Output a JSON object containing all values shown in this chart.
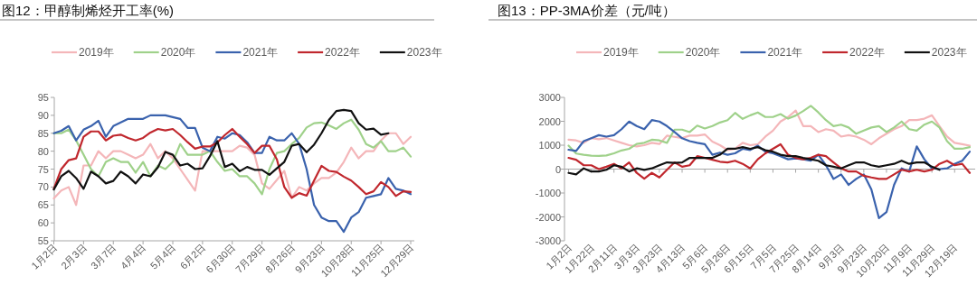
{
  "chart_data": [
    {
      "type": "line",
      "title": "图12：甲醇制烯烃开工率(%)",
      "legend": "top",
      "categories": [
        "1月2日",
        null,
        null,
        null,
        "2月3日",
        null,
        null,
        null,
        "3月7日",
        null,
        null,
        null,
        "4月4日",
        null,
        null,
        null,
        "5月4日",
        null,
        null,
        null,
        "6月2日",
        null,
        null,
        null,
        "6月30日",
        null,
        null,
        null,
        "7月29日",
        null,
        null,
        null,
        "8月26日",
        null,
        null,
        null,
        "9月23日",
        null,
        null,
        null,
        "10月28日",
        null,
        null,
        null,
        "11月25日",
        null,
        null,
        null,
        "12月29日"
      ],
      "ylim": [
        55,
        95
      ],
      "yticks": [
        55,
        60,
        65,
        70,
        75,
        80,
        85,
        90,
        95
      ],
      "series": [
        {
          "name": "2019年",
          "color": "#f4b6b9",
          "values": [
            66.8,
            69,
            70,
            65,
            76,
            76,
            80,
            78,
            80,
            80,
            79,
            78,
            79,
            82,
            78,
            80,
            78,
            75,
            72,
            69,
            80,
            80,
            80,
            80,
            80,
            81.5,
            81,
            79,
            71,
            69.5,
            72,
            74.5,
            67,
            70,
            69,
            71,
            72.5,
            72.5,
            74,
            77,
            81,
            78,
            80,
            80,
            83,
            85,
            85,
            82,
            84
          ]
        },
        {
          "name": "2020年",
          "color": "#9fd18a",
          "values": [
            85,
            85,
            86,
            83,
            79,
            75,
            73,
            77,
            78,
            77,
            77,
            74,
            77,
            73,
            76,
            75,
            77,
            82,
            79,
            79,
            79,
            80,
            77,
            74.5,
            75,
            73,
            73,
            71,
            68,
            75,
            79.5,
            80,
            82,
            83.7,
            86.6,
            87.8,
            88,
            87.2,
            86.2,
            87.8,
            88.8,
            86,
            82,
            81,
            82.8,
            80,
            80,
            81,
            78.5
          ]
        },
        {
          "name": "2021年",
          "color": "#3a62ad",
          "values": [
            85,
            85.7,
            87,
            83,
            86,
            87,
            88.5,
            84,
            87,
            88,
            89,
            89,
            89,
            90,
            90,
            90,
            89.5,
            89,
            86.5,
            86.5,
            81,
            80,
            84,
            83.5,
            85,
            84.5,
            82.5,
            79.5,
            79.5,
            84,
            83,
            83,
            85,
            82,
            75,
            65,
            61.5,
            60.5,
            60.5,
            57.5,
            61.5,
            63,
            67,
            67.5,
            68,
            72.5,
            69.5,
            69,
            68
          ]
        },
        {
          "name": "2022年",
          "color": "#c0272d",
          "values": [
            69.5,
            75,
            77.5,
            78,
            84,
            85.5,
            85.5,
            83,
            84.3,
            84.6,
            83.7,
            83,
            83.7,
            85.2,
            86.2,
            85.8,
            86.2,
            84.5,
            82.5,
            80.7,
            81.3,
            81.3,
            82.4,
            84.5,
            86.2,
            84,
            82,
            79.5,
            81.5,
            81.5,
            77.7,
            70,
            67,
            68.3,
            67.6,
            71.8,
            75.9,
            74.5,
            74.2,
            72.9,
            71.8,
            70,
            68,
            68.8,
            71.4,
            70,
            67.5,
            68.8,
            68.6
          ]
        },
        {
          "name": "2023年",
          "color": "#111111",
          "values": [
            69.3,
            73,
            74.5,
            72.5,
            69.5,
            74.3,
            73,
            71,
            71.7,
            74.3,
            73,
            71,
            73.5,
            73,
            75.5,
            79.8,
            79,
            76,
            76.5,
            75,
            75.2,
            78.6,
            82.8,
            75.6,
            76.5,
            74.4,
            75.6,
            74.8,
            74.8,
            73.4,
            75.2,
            77,
            81.5,
            82,
            79.7,
            81.8,
            85,
            88.7,
            91.2,
            91.5,
            91.2,
            87.8,
            86,
            86.3,
            84.6,
            85,
            null,
            null,
            null
          ]
        }
      ]
    },
    {
      "type": "line",
      "title": "图13：PP-3MA价差（元/吨）",
      "legend": "top",
      "categories": [
        "1月2日",
        null,
        null,
        "1月22日",
        null,
        null,
        "2月11日",
        null,
        null,
        "3月3日",
        null,
        null,
        "3月23日",
        null,
        null,
        "4月13日",
        null,
        null,
        "5月6日",
        null,
        null,
        "5月26日",
        null,
        null,
        "6月15日",
        null,
        null,
        "7月5日",
        null,
        null,
        "7月25日",
        null,
        null,
        "8月14日",
        null,
        null,
        "9月3日",
        null,
        null,
        "9月23日",
        null,
        null,
        "10月20日",
        null,
        null,
        "11月9日",
        null,
        null,
        "11月29日",
        null,
        null,
        "12月19日",
        null,
        null
      ],
      "ylim": [
        -3000,
        3000
      ],
      "yticks": [
        -3000,
        -2000,
        -1000,
        0,
        1000,
        2000,
        3000
      ],
      "series": [
        {
          "name": "2019年",
          "color": "#f4b6b9",
          "values": [
            1230,
            1200,
            1100,
            1300,
            1250,
            1300,
            1200,
            1100,
            1000,
            950,
            1000,
            1100,
            1050,
            1400,
            1350,
            1300,
            1400,
            1400,
            1450,
            1150,
            1000,
            800,
            850,
            1100,
            1000,
            1040,
            1360,
            1610,
            1990,
            2180,
            2450,
            1800,
            1800,
            1550,
            1670,
            1610,
            1360,
            1420,
            1360,
            1230,
            1040,
            1290,
            1480,
            1670,
            1800,
            2050,
            2050,
            2110,
            2250,
            1800,
            1360,
            1100,
            1040,
            980
          ]
        },
        {
          "name": "2020年",
          "color": "#9fd18a",
          "values": [
            980,
            650,
            600,
            560,
            550,
            570,
            660,
            780,
            850,
            1050,
            1100,
            1230,
            1200,
            1100,
            1650,
            1650,
            1550,
            1820,
            1700,
            1800,
            1950,
            2050,
            2350,
            2100,
            2250,
            2370,
            2180,
            2180,
            2300,
            2110,
            2240,
            2430,
            2650,
            2370,
            2050,
            1800,
            1860,
            1740,
            1480,
            1610,
            1740,
            1800,
            1550,
            1740,
            1990,
            1670,
            1610,
            1860,
            1990,
            1740,
            1170,
            850,
            850,
            920
          ]
        },
        {
          "name": "2021年",
          "color": "#3a62ad",
          "values": [
            810,
            760,
            1170,
            1290,
            1420,
            1360,
            1420,
            1670,
            1990,
            1800,
            1670,
            2050,
            1990,
            1800,
            1550,
            1290,
            1170,
            1100,
            1040,
            600,
            690,
            600,
            660,
            850,
            800,
            980,
            730,
            660,
            540,
            410,
            450,
            410,
            350,
            600,
            160,
            -410,
            -220,
            -660,
            -410,
            -220,
            -850,
            -2050,
            -1800,
            -660,
            30,
            -100,
            950,
            410,
            30,
            0,
            30,
            220,
            350,
            730
          ]
        },
        {
          "name": "2022年",
          "color": "#c0272d",
          "values": [
            470,
            390,
            160,
            160,
            0,
            100,
            220,
            30,
            280,
            -160,
            -400,
            -160,
            -350,
            -30,
            280,
            100,
            160,
            540,
            470,
            390,
            310,
            280,
            350,
            220,
            30,
            410,
            660,
            850,
            1040,
            600,
            470,
            410,
            470,
            600,
            540,
            280,
            30,
            -100,
            -100,
            -280,
            -350,
            -410,
            -410,
            -220,
            -30,
            -100,
            -30,
            -100,
            -30,
            220,
            350,
            160,
            220,
            -160
          ]
        },
        {
          "name": "2023年",
          "color": "#111111",
          "values": [
            -160,
            -220,
            30,
            -100,
            -100,
            -30,
            160,
            100,
            -100,
            30,
            -30,
            30,
            160,
            280,
            260,
            280,
            470,
            470,
            470,
            470,
            600,
            850,
            850,
            920,
            850,
            920,
            790,
            730,
            600,
            540,
            540,
            470,
            410,
            350,
            160,
            100,
            30,
            160,
            280,
            280,
            160,
            100,
            160,
            220,
            350,
            220,
            280,
            280,
            100,
            -30,
            null,
            null,
            null,
            null
          ]
        }
      ]
    }
  ]
}
